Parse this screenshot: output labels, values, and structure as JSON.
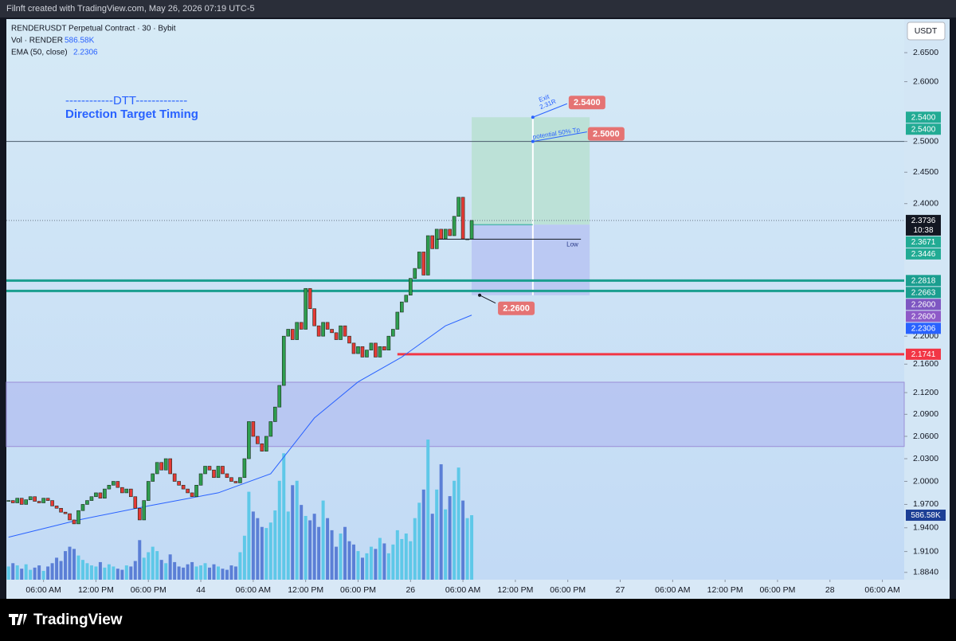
{
  "header": {
    "attribution": "Filnft created with TradingView.com, May 26, 2026 07:19 UTC-5"
  },
  "footer": {
    "brand": "TradingView"
  },
  "chart_data": {
    "type": "candlestick",
    "title": "RENDERUSDT Perpetual Contract · 30 · Bybit",
    "legend": [
      {
        "name": "Vol · RENDER",
        "value_label": "586.58K"
      },
      {
        "name": "EMA (50, close)",
        "value_label": "2.2306"
      }
    ],
    "currency": "USDT",
    "log_scale": true,
    "up_color": "#2e9e4f",
    "down_color": "#e53935",
    "volume_up_color": "#5ec8e8",
    "volume_down_color": "#5b7fd6",
    "closes": [
      1.975,
      1.972,
      1.978,
      1.97,
      1.976,
      1.98,
      1.974,
      1.972,
      1.978,
      1.975,
      1.968,
      1.965,
      1.96,
      1.958,
      1.95,
      1.945,
      1.962,
      1.97,
      1.975,
      1.98,
      1.985,
      1.978,
      1.99,
      1.995,
      2.0,
      1.992,
      1.985,
      1.99,
      1.98,
      1.965,
      1.95,
      1.975,
      2.0,
      2.01,
      2.025,
      2.015,
      2.03,
      2.01,
      2.0,
      1.995,
      1.99,
      1.985,
      1.98,
      1.995,
      2.01,
      2.02,
      2.015,
      2.005,
      2.02,
      2.01,
      2.005,
      2.0,
      1.998,
      2.005,
      2.03,
      2.08,
      2.06,
      2.05,
      2.04,
      2.06,
      2.08,
      2.1,
      2.13,
      2.2,
      2.21,
      2.195,
      2.22,
      2.21,
      2.27,
      2.24,
      2.215,
      2.2,
      2.22,
      2.21,
      2.205,
      2.195,
      2.215,
      2.2,
      2.19,
      2.175,
      2.185,
      2.17,
      2.18,
      2.19,
      2.17,
      2.185,
      2.18,
      2.2,
      2.21,
      2.235,
      2.25,
      2.26,
      2.285,
      2.3,
      2.325,
      2.29,
      2.35,
      2.33,
      2.36,
      2.345,
      2.36,
      2.35,
      2.38,
      2.41,
      2.345,
      2.345,
      2.3736
    ],
    "volumes": [
      120,
      150,
      130,
      100,
      140,
      90,
      110,
      130,
      80,
      120,
      150,
      200,
      170,
      260,
      300,
      280,
      220,
      180,
      150,
      130,
      120,
      160,
      110,
      140,
      120,
      100,
      90,
      130,
      120,
      170,
      360,
      200,
      250,
      300,
      260,
      180,
      150,
      230,
      160,
      120,
      110,
      140,
      160,
      120,
      130,
      150,
      110,
      140,
      120,
      100,
      90,
      130,
      120,
      250,
      400,
      800,
      620,
      560,
      480,
      470,
      520,
      630,
      900,
      1150,
      620,
      860,
      900,
      680,
      580,
      540,
      600,
      480,
      720,
      560,
      450,
      300,
      420,
      480,
      350,
      320,
      260,
      200,
      240,
      300,
      280,
      380,
      330,
      240,
      320,
      450,
      370,
      420,
      350,
      560,
      700,
      820,
      1275,
      600,
      820,
      1050,
      640,
      760,
      900,
      1020,
      720,
      560,
      586.58
    ],
    "ylim": [
      1.875,
      2.709
    ],
    "yticks": [
      {
        "value": 2.65,
        "label": "2.6500"
      },
      {
        "value": 2.6,
        "label": "2.6000"
      },
      {
        "value": 2.5,
        "label": "2.5000"
      },
      {
        "value": 2.45,
        "label": "2.4500"
      },
      {
        "value": 2.4,
        "label": "2.4000"
      },
      {
        "value": 2.2,
        "label": "2.2000"
      },
      {
        "value": 2.16,
        "label": "2.1600"
      },
      {
        "value": 2.12,
        "label": "2.1200"
      },
      {
        "value": 2.09,
        "label": "2.0900"
      },
      {
        "value": 2.06,
        "label": "2.0600"
      },
      {
        "value": 2.03,
        "label": "2.0300"
      },
      {
        "value": 2,
        "label": "2.0000"
      },
      {
        "value": 1.97,
        "label": "1.9700"
      },
      {
        "value": 1.94,
        "label": "1.9400"
      },
      {
        "value": 1.91,
        "label": "1.9100"
      },
      {
        "value": 1.884,
        "label": "1.8840"
      }
    ],
    "xlim": [
      -0.5,
      205
    ],
    "xticks": [
      {
        "value": 8,
        "label": "06:00 AM"
      },
      {
        "value": 20,
        "label": "12:00 PM"
      },
      {
        "value": 32,
        "label": "06:00 PM"
      },
      44,
      {
        "value": 56,
        "label": "06:00 AM"
      },
      {
        "value": 68,
        "label": "12:00 PM"
      },
      {
        "value": 80,
        "label": "06:00 PM"
      },
      {
        "value": 92,
        "label": "26"
      },
      {
        "value": 104,
        "label": "06:00 AM"
      },
      {
        "value": 116,
        "label": "12:00 PM"
      },
      {
        "value": 128,
        "label": "06:00 PM"
      },
      {
        "value": 140,
        "label": "27"
      },
      {
        "value": 152,
        "label": "06:00 AM"
      },
      {
        "value": 164,
        "label": "12:00 PM"
      },
      {
        "value": 176,
        "label": "06:00 PM"
      },
      {
        "value": 188,
        "label": "28"
      },
      {
        "value": 200,
        "label": "06:00 AM"
      }
    ],
    "vlim": [
      0,
      5100
    ],
    "ema": {
      "color": "#2962ff",
      "x": [
        0,
        16,
        32,
        48,
        60,
        70,
        80,
        90,
        100,
        106
      ],
      "values": [
        1.928,
        1.95,
        1.968,
        1.985,
        2.01,
        2.085,
        2.135,
        2.17,
        2.215,
        2.2306
      ]
    },
    "levels": [
      {
        "value": 2.5,
        "color": "#4a5a6a",
        "width": 1
      },
      {
        "value": 2.3736,
        "color": "#6b7785",
        "width": 1,
        "dash": true
      },
      {
        "value": 2.2818,
        "color": "#1a9e8f",
        "width": 3
      },
      {
        "value": 2.2663,
        "color": "#1a9e8f",
        "width": 3
      },
      {
        "value": 2.1741,
        "color": "#f23645",
        "width": 3,
        "from": 89
      }
    ],
    "zone": {
      "from": 2.0463,
      "to": 2.1345,
      "color": "#b3bff0"
    },
    "position": {
      "start": 106,
      "mid": 120,
      "end": 133,
      "entry": 2.3671,
      "target": {
        "value": 2.54,
        "label": "2.5400"
      },
      "tp": {
        "value": 2.5,
        "label": "2.5000"
      },
      "stop": {
        "value": 2.26,
        "label": "2.2600"
      },
      "target_color": "#b6e0cf",
      "stop_color": "#b7c4f2",
      "pill_color": "#e57373"
    },
    "low": {
      "value": 2.3446,
      "from": 98,
      "to": 131,
      "label": "Low"
    },
    "price_tags": [
      {
        "value": 2.54,
        "label": "2.5400",
        "color": "#22ab94"
      },
      {
        "value": 2.54,
        "label": "2.5400",
        "color": "#22ab94"
      },
      {
        "value": 2.3736,
        "label": "2.3736",
        "countdown": "10:38",
        "color": "#131722"
      },
      {
        "value": 2.3671,
        "label": "2.3671",
        "color": "#22ab94"
      },
      {
        "value": 2.3446,
        "label": "2.3446",
        "color": "#22ab94"
      },
      {
        "value": 2.2818,
        "label": "2.2818",
        "color": "#1a9e8f"
      },
      {
        "value": 2.2663,
        "label": "2.2663",
        "color": "#1a9e8f"
      },
      {
        "value": 2.26,
        "label": "2.2600",
        "color": "#7e57c2"
      },
      {
        "value": 2.26,
        "label": "2.2600",
        "color": "#8e5ac8"
      },
      {
        "value": 2.2306,
        "label": "2.2306",
        "color": "#2962ff"
      },
      {
        "value": 2.1741,
        "label": "2.1741",
        "color": "#f23645"
      }
    ],
    "volume_tag": {
      "value": 586.58,
      "label": "586.58K",
      "color": "#1c3f95"
    },
    "annotations": {
      "dtt": "------------DTT-------------",
      "dtt_subtitle": "Direction Target Timing",
      "exit": "Exit",
      "exit_r": "2.31R",
      "tp_note": "potential 50% Tp"
    }
  }
}
